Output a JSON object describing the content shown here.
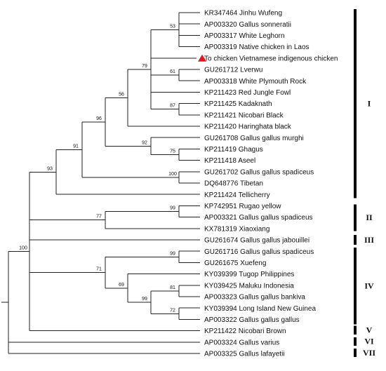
{
  "tree": {
    "taxa": [
      "KR347464 Jinhu Wufeng",
      "AP003320 Gallus sonneratii",
      "AP003317 White Leghorn",
      "AP003319 Native chicken in Laos",
      "To chicken Vietnamese indigenous chicken",
      "GU261712 Lverwu",
      "AP003318 White Plymouth Rock",
      "KP211423 Red Jungle Fowl",
      "KP211425 Kadaknath",
      "KP211421 Nicobari Black",
      "KP211420 Haringhata black",
      "GU261708 Gallus gallus murghi",
      "KP211419 Ghagus",
      "KP211418 Aseel",
      "GU261702 Gallus gallus spadiceus",
      "DQ648776 Tibetan",
      "KP211424 Tellicherry",
      "KP742951 Rugao yellow",
      "AP003321 Gallus gallus spadiceus",
      "KX781319 Xiaoxiang",
      "GU261674 Gallus gallus jabouillei",
      "GU261716 Gallus gallus spadiceus",
      "GU261675 Xuefeng",
      "KY039399 Tugop Philippines",
      "KY039425 Maluku Indonesia",
      "AP003323 Gallus gallus bankiva",
      "KY039394 Long Island New Guinea",
      "AP003322 Gallus gallus gallus",
      "KP211422 Nicobari Brown",
      "AP003324 Gallus varius",
      "AP003325 Gallus lafayetii"
    ],
    "highlighted_taxon_index": 4,
    "marker_color": "#e8161b",
    "bootstrap_values": [
      "53",
      "79",
      "61",
      "56",
      "87",
      "96",
      "92",
      "75",
      "91",
      "100",
      "93",
      "99",
      "77",
      "100",
      "99",
      "69",
      "81",
      "99",
      "72",
      "71"
    ],
    "groups": [
      "I",
      "II",
      "III",
      "IV",
      "V",
      "VI",
      "VII"
    ]
  }
}
